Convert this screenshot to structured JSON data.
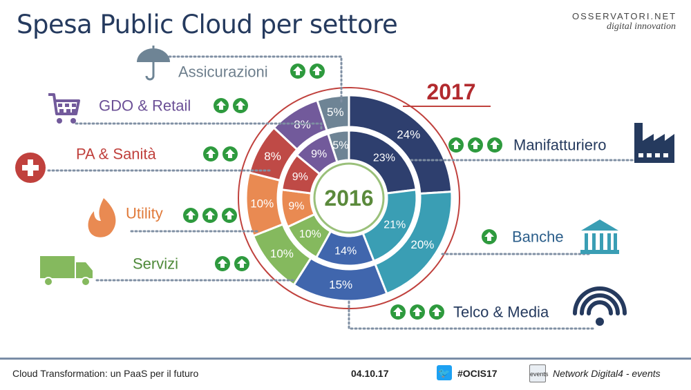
{
  "title": "Spesa Public Cloud per settore",
  "logo": {
    "line1": "OSSERVATORI.NET",
    "line2": "digital innovation"
  },
  "chart_data": {
    "type": "donut",
    "outer_label": "2017",
    "inner_label": "2016",
    "sectors": [
      {
        "name": "Manifatturiero",
        "v2017": 24,
        "v2016": 23,
        "growth_arrows": 3,
        "icon": "factory-icon",
        "color": "#2e3f6e",
        "labelColor": "#253a5e"
      },
      {
        "name": "Banche",
        "v2017": 20,
        "v2016": 21,
        "growth_arrows": 1,
        "icon": "bank-icon",
        "color": "#3a9eb4",
        "labelColor": "#2b5e8a"
      },
      {
        "name": "Telco & Media",
        "v2017": 15,
        "v2016": 14,
        "growth_arrows": 3,
        "icon": "wifi-icon",
        "color": "#4066ad",
        "labelColor": "#253a5e"
      },
      {
        "name": "Servizi",
        "v2017": 10,
        "v2016": 10,
        "growth_arrows": 2,
        "icon": "truck-icon",
        "color": "#85b95e",
        "labelColor": "#4f8a3a"
      },
      {
        "name": "Utility",
        "v2017": 10,
        "v2016": 9,
        "growth_arrows": 3,
        "icon": "flame-icon",
        "color": "#e98a52",
        "labelColor": "#e07a3a"
      },
      {
        "name": "PA & Sanità",
        "v2017": 8,
        "v2016": 9,
        "growth_arrows": 2,
        "icon": "medical-cross-icon",
        "color": "#bf4a46",
        "labelColor": "#c0413d"
      },
      {
        "name": "GDO & Retail",
        "v2017": 8,
        "v2016": 9,
        "growth_arrows": 2,
        "icon": "cart-icon",
        "color": "#725a9b",
        "labelColor": "#6b4f96"
      },
      {
        "name": "Assicurazioni",
        "v2017": 5,
        "v2016": 5,
        "growth_arrows": 2,
        "icon": "umbrella-icon",
        "color": "#6e8495",
        "labelColor": "#6e7f8d"
      }
    ]
  },
  "footer": {
    "conference": "Cloud Transformation: un PaaS per il futuro",
    "date": "04.10.17",
    "hashtag": "#OCIS17",
    "network": "Network Digital4 - events",
    "twitter_icon": "twitter-icon",
    "calendar_icon": "calendar-icon",
    "calendar_text": "events"
  },
  "colors": {
    "green_arrow": "#2e9a3e",
    "accent_red": "#b22a2e",
    "year_inner": "#5b8a3c"
  }
}
